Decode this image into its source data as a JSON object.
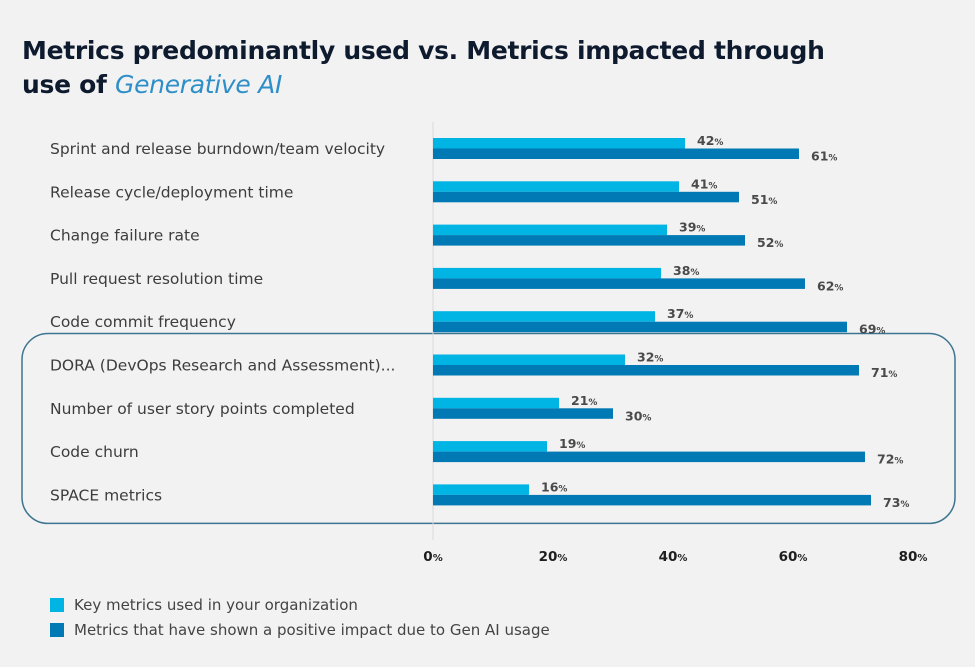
{
  "title": {
    "line1": "Metrics predominantly used vs. Metrics impacted through",
    "line2_prefix": "use of ",
    "line2_accent": "Generative AI"
  },
  "colors": {
    "series1": "#00b4e4",
    "series2": "#0079b4",
    "highlight_border": "#3d7590",
    "axis_line": "#d9d9d9"
  },
  "chart_data": {
    "type": "bar",
    "orientation": "horizontal",
    "title": "Metrics predominantly used vs. Metrics impacted through use of Generative AI",
    "xlabel": "",
    "ylabel": "",
    "xlim": [
      0,
      80
    ],
    "xticks": [
      0,
      20,
      40,
      60,
      80
    ],
    "tick_suffix": "%",
    "value_suffix": "%",
    "grid": false,
    "legend_position": "bottom-left",
    "categories": [
      "Sprint and release burndown/team velocity",
      "Release cycle/deployment time",
      "Change failure rate",
      "Pull request resolution time",
      "Code commit frequency",
      "DORA (DevOps Research and Assessment)...",
      "Number of user story points completed",
      "Code churn",
      "SPACE metrics"
    ],
    "series": [
      {
        "name": "Key metrics used in your organization",
        "values": [
          42,
          41,
          39,
          38,
          37,
          32,
          21,
          19,
          16
        ]
      },
      {
        "name": "Metrics that have shown a positive impact due to Gen AI usage",
        "values": [
          61,
          51,
          52,
          62,
          69,
          71,
          30,
          72,
          73
        ]
      }
    ],
    "highlighted_categories": [
      5,
      6,
      7,
      8
    ]
  }
}
